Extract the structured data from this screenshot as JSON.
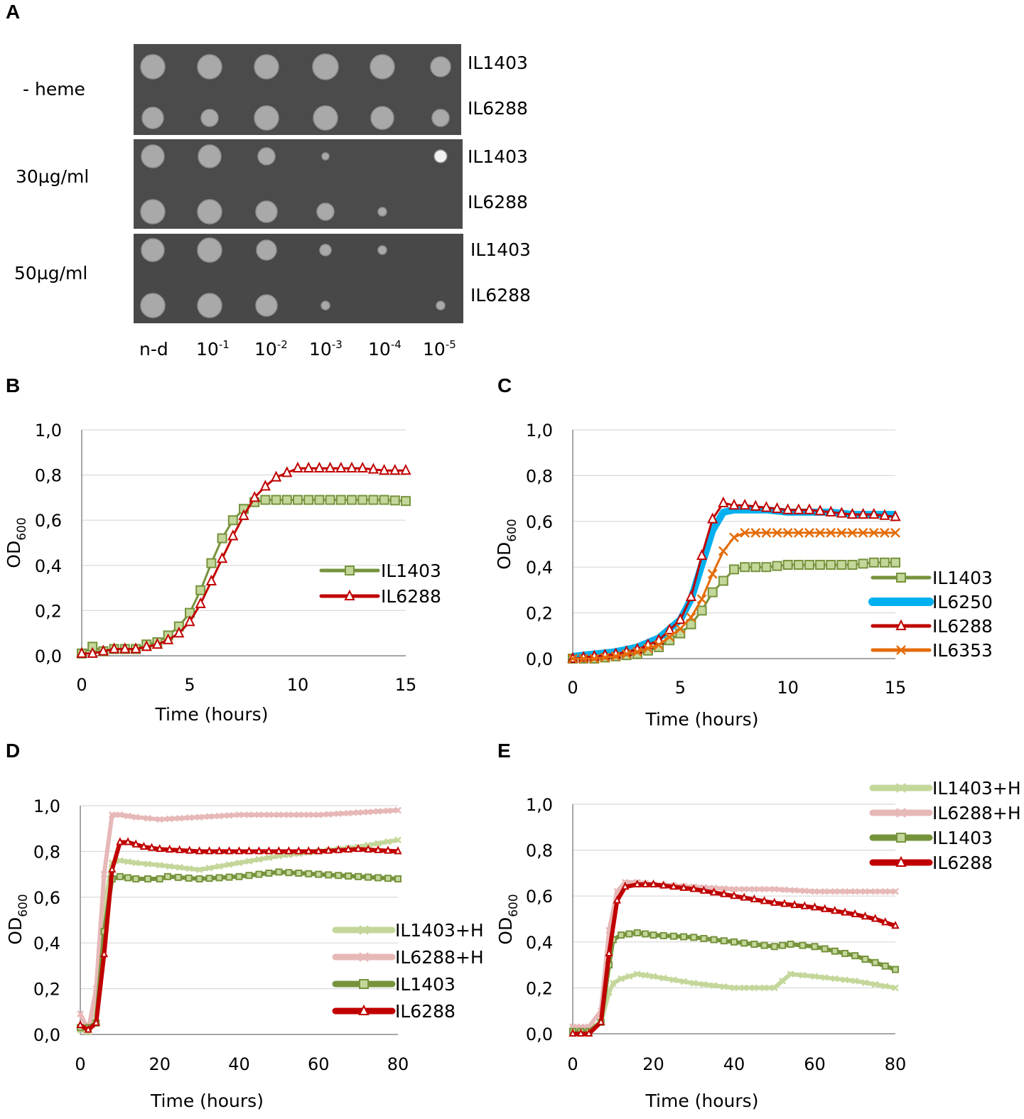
{
  "panel_a": {
    "letter": "A",
    "conditions": [
      "- heme",
      "30µg/ml",
      "50µg/ml"
    ],
    "strains": [
      "IL1403",
      "IL6288"
    ],
    "dilutions": [
      {
        "base": "n-d",
        "exp": ""
      },
      {
        "base": "10",
        "exp": "-1"
      },
      {
        "base": "10",
        "exp": "-2"
      },
      {
        "base": "10",
        "exp": "-3"
      },
      {
        "base": "10",
        "exp": "-4"
      },
      {
        "base": "10",
        "exp": "-5"
      }
    ]
  },
  "chart_data": [
    {
      "id": "B",
      "type": "line",
      "letter": "B",
      "xlabel": "Time (hours)",
      "ylabel": "OD",
      "ylabel_sub": "600",
      "xlim": [
        0,
        15
      ],
      "ylim": [
        0,
        1
      ],
      "xticks": [
        "0",
        "5",
        "10",
        "15"
      ],
      "yticks": [
        "0,0",
        "0,2",
        "0,4",
        "0,6",
        "0,8",
        "1,0"
      ],
      "legend": "right-middle",
      "series": [
        {
          "name": "IL1403",
          "color": "#76933c",
          "marker": "square",
          "x": [
            0,
            0.5,
            1,
            1.5,
            2,
            2.5,
            3,
            3.5,
            4,
            4.5,
            5,
            5.5,
            6,
            6.5,
            7,
            7.5,
            8,
            8.5,
            9,
            9.5,
            10,
            11,
            12,
            13,
            14,
            15
          ],
          "y": [
            0.01,
            0.04,
            0.02,
            0.03,
            0.03,
            0.03,
            0.05,
            0.06,
            0.09,
            0.13,
            0.19,
            0.29,
            0.41,
            0.52,
            0.6,
            0.65,
            0.68,
            0.69,
            0.69,
            0.69,
            0.69,
            0.69,
            0.69,
            0.69,
            0.69,
            0.685
          ]
        },
        {
          "name": "IL6288",
          "color": "#c00000",
          "marker": "triangle",
          "x": [
            0,
            0.5,
            1,
            1.5,
            2,
            2.5,
            3,
            3.5,
            4,
            4.5,
            5,
            5.5,
            6,
            6.5,
            7,
            7.5,
            8,
            8.5,
            9,
            9.5,
            10,
            10.5,
            11,
            12,
            13,
            14,
            15
          ],
          "y": [
            0.01,
            0.01,
            0.02,
            0.03,
            0.03,
            0.03,
            0.04,
            0.05,
            0.07,
            0.1,
            0.15,
            0.23,
            0.33,
            0.43,
            0.53,
            0.62,
            0.7,
            0.75,
            0.79,
            0.81,
            0.83,
            0.83,
            0.83,
            0.83,
            0.83,
            0.82,
            0.82
          ]
        }
      ]
    },
    {
      "id": "C",
      "type": "line",
      "letter": "C",
      "xlabel": "Time (hours)",
      "ylabel": "OD",
      "ylabel_sub": "600",
      "xlim": [
        0,
        15
      ],
      "ylim": [
        0,
        1
      ],
      "xticks": [
        "0",
        "5",
        "10",
        "15"
      ],
      "yticks": [
        "0,0",
        "0,2",
        "0,4",
        "0,6",
        "0,8",
        "1,0"
      ],
      "legend": "bottom-right",
      "series": [
        {
          "name": "IL1403",
          "color": "#76933c",
          "marker": "square",
          "x": [
            0,
            1,
            2,
            3,
            4,
            5,
            5.5,
            6,
            6.5,
            7,
            7.5,
            8,
            9,
            10,
            11,
            12,
            13,
            14,
            15
          ],
          "y": [
            0.0,
            0.0,
            0.01,
            0.02,
            0.05,
            0.11,
            0.15,
            0.21,
            0.29,
            0.34,
            0.39,
            0.4,
            0.4,
            0.41,
            0.41,
            0.41,
            0.41,
            0.42,
            0.42
          ]
        },
        {
          "name": "IL6250",
          "color": "#00b0f0",
          "marker": "none",
          "thick": true,
          "x": [
            0,
            1,
            2,
            3,
            4,
            5,
            5.5,
            6,
            6.5,
            7,
            7.5,
            8,
            9,
            10,
            11,
            12,
            13,
            14,
            15
          ],
          "y": [
            0.01,
            0.02,
            0.03,
            0.05,
            0.09,
            0.17,
            0.26,
            0.41,
            0.56,
            0.64,
            0.65,
            0.65,
            0.65,
            0.64,
            0.64,
            0.64,
            0.63,
            0.63,
            0.63
          ]
        },
        {
          "name": "IL6288",
          "color": "#c00000",
          "marker": "triangle",
          "x": [
            0,
            1,
            2,
            3,
            4,
            5,
            5.5,
            6,
            6.5,
            7,
            7.5,
            8,
            9,
            10,
            11,
            12,
            13,
            14,
            15
          ],
          "y": [
            0.0,
            0.01,
            0.02,
            0.04,
            0.08,
            0.17,
            0.27,
            0.45,
            0.61,
            0.68,
            0.67,
            0.67,
            0.66,
            0.65,
            0.65,
            0.64,
            0.63,
            0.63,
            0.62
          ]
        },
        {
          "name": "IL6353",
          "color": "#e46c0a",
          "marker": "x",
          "x": [
            0,
            1,
            2,
            3,
            4,
            5,
            5.5,
            6,
            6.5,
            7,
            7.5,
            8,
            9,
            10,
            11,
            12,
            13,
            14,
            15
          ],
          "y": [
            0.0,
            0.0,
            0.01,
            0.03,
            0.06,
            0.13,
            0.18,
            0.26,
            0.37,
            0.47,
            0.53,
            0.55,
            0.55,
            0.55,
            0.55,
            0.55,
            0.55,
            0.55,
            0.55
          ]
        }
      ]
    },
    {
      "id": "D",
      "type": "line",
      "letter": "D",
      "xlabel": "Time (hours)",
      "ylabel": "OD",
      "ylabel_sub": "600",
      "xlim": [
        0,
        80
      ],
      "ylim": [
        0,
        1
      ],
      "xticks": [
        "0",
        "20",
        "40",
        "60",
        "80"
      ],
      "yticks": [
        "0,0",
        "0,2",
        "0,4",
        "0,6",
        "0,8",
        "1,0"
      ],
      "legend": "bottom-right",
      "series": [
        {
          "name": "IL1403+H",
          "color": "#c4d79b",
          "marker": "x",
          "thick": true,
          "x": [
            0,
            2,
            4,
            6,
            8,
            10,
            14,
            20,
            30,
            40,
            50,
            60,
            70,
            80
          ],
          "y": [
            0.02,
            0.01,
            0.15,
            0.55,
            0.75,
            0.76,
            0.75,
            0.74,
            0.72,
            0.75,
            0.78,
            0.8,
            0.82,
            0.85
          ]
        },
        {
          "name": "IL6288+H",
          "color": "#e6b8b7",
          "marker": "x",
          "thick": true,
          "x": [
            0,
            2,
            4,
            6,
            8,
            10,
            14,
            20,
            30,
            40,
            50,
            60,
            70,
            80
          ],
          "y": [
            0.09,
            0.02,
            0.2,
            0.7,
            0.96,
            0.96,
            0.95,
            0.94,
            0.95,
            0.96,
            0.96,
            0.96,
            0.97,
            0.98
          ]
        },
        {
          "name": "IL1403",
          "color": "#76933c",
          "marker": "square",
          "thick": true,
          "x": [
            0,
            2,
            4,
            6,
            8,
            10,
            14,
            20,
            22,
            30,
            40,
            50,
            60,
            70,
            80
          ],
          "y": [
            0.03,
            0.03,
            0.05,
            0.45,
            0.68,
            0.69,
            0.68,
            0.68,
            0.69,
            0.68,
            0.69,
            0.71,
            0.7,
            0.69,
            0.68
          ]
        },
        {
          "name": "IL6288",
          "color": "#c00000",
          "marker": "triangle",
          "thick": true,
          "x": [
            0,
            2,
            4,
            6,
            8,
            10,
            12,
            16,
            20,
            30,
            40,
            50,
            60,
            70,
            80
          ],
          "y": [
            0.04,
            0.02,
            0.05,
            0.35,
            0.72,
            0.84,
            0.84,
            0.82,
            0.81,
            0.8,
            0.8,
            0.8,
            0.8,
            0.81,
            0.8
          ]
        }
      ]
    },
    {
      "id": "E",
      "type": "line",
      "letter": "E",
      "xlabel": "Time (hours)",
      "ylabel": "OD",
      "ylabel_sub": "600",
      "xlim": [
        0,
        80
      ],
      "ylim": [
        0,
        1
      ],
      "xticks": [
        "0",
        "20",
        "40",
        "60",
        "80"
      ],
      "yticks": [
        "0,0",
        "0,2",
        "0,4",
        "0,6",
        "0,8",
        "1,0"
      ],
      "legend": "top-right",
      "series": [
        {
          "name": "IL1403+H",
          "color": "#c4d79b",
          "marker": "x",
          "thick": true,
          "x": [
            0,
            4,
            7,
            9,
            10,
            12,
            16,
            20,
            30,
            40,
            50,
            52,
            54,
            60,
            70,
            80
          ],
          "y": [
            0.02,
            0.02,
            0.05,
            0.18,
            0.22,
            0.24,
            0.26,
            0.25,
            0.22,
            0.2,
            0.2,
            0.23,
            0.26,
            0.25,
            0.23,
            0.2
          ]
        },
        {
          "name": "IL6288+H",
          "color": "#e6b8b7",
          "marker": "x",
          "thick": true,
          "x": [
            0,
            4,
            7,
            9,
            11,
            13,
            16,
            20,
            30,
            40,
            50,
            60,
            70,
            80
          ],
          "y": [
            0.03,
            0.03,
            0.1,
            0.45,
            0.62,
            0.66,
            0.66,
            0.65,
            0.64,
            0.63,
            0.63,
            0.62,
            0.62,
            0.62
          ]
        },
        {
          "name": "IL1403",
          "color": "#76933c",
          "marker": "square",
          "thick": true,
          "x": [
            0,
            4,
            7,
            9,
            10,
            12,
            16,
            20,
            30,
            40,
            50,
            54,
            60,
            70,
            75,
            80
          ],
          "y": [
            0.01,
            0.01,
            0.05,
            0.3,
            0.41,
            0.43,
            0.44,
            0.43,
            0.42,
            0.4,
            0.38,
            0.39,
            0.38,
            0.34,
            0.31,
            0.28
          ]
        },
        {
          "name": "IL6288",
          "color": "#c00000",
          "marker": "triangle",
          "thick": true,
          "x": [
            0,
            4,
            7,
            9,
            11,
            13,
            16,
            20,
            30,
            40,
            50,
            60,
            70,
            75,
            80
          ],
          "y": [
            0.0,
            0.0,
            0.05,
            0.35,
            0.58,
            0.64,
            0.65,
            0.65,
            0.63,
            0.6,
            0.57,
            0.55,
            0.52,
            0.5,
            0.47
          ]
        }
      ]
    }
  ]
}
